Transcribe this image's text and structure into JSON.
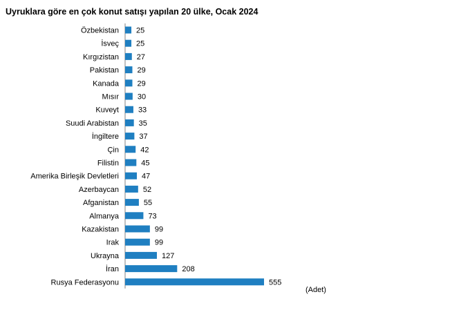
{
  "chart_data": {
    "type": "bar",
    "orientation": "horizontal",
    "title": "Uyruklara göre en çok konut satışı yapılan 20 ülke, Ocak 2024",
    "unit": "(Adet)",
    "bar_color": "#1f7fc1",
    "categories": [
      "Özbekistan",
      "İsveç",
      "Kırgızistan",
      "Pakistan",
      "Kanada",
      "Mısır",
      "Kuveyt",
      "Suudi Arabistan",
      "İngiltere",
      "Çin",
      "Filistin",
      "Amerika Birleşik Devletleri",
      "Azerbaycan",
      "Afganistan",
      "Almanya",
      "Kazakistan",
      "Irak",
      "Ukrayna",
      "İran",
      "Rusya Federasyonu"
    ],
    "values": [
      25,
      25,
      27,
      29,
      29,
      30,
      33,
      35,
      37,
      42,
      45,
      47,
      52,
      55,
      73,
      99,
      99,
      127,
      208,
      555
    ],
    "xlim": [
      0,
      555
    ],
    "grid": false,
    "legend": "none"
  }
}
